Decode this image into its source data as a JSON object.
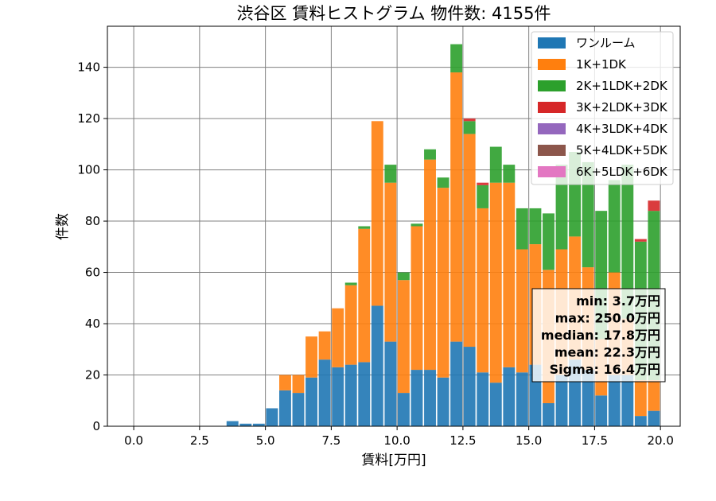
{
  "chart_data": {
    "type": "bar",
    "stacked": true,
    "title": "渋谷区 賃料ヒストグラム 物件数: 4155件",
    "xlabel": "賃料[万円]",
    "ylabel": "件数",
    "xlim": [
      -1.0,
      20.75
    ],
    "ylim": [
      0,
      156
    ],
    "xticks": [
      "0.0",
      "2.5",
      "5.0",
      "7.5",
      "10.0",
      "12.5",
      "15.0",
      "17.5",
      "20.0"
    ],
    "yticks": [
      "0",
      "20",
      "40",
      "60",
      "80",
      "100",
      "120",
      "140"
    ],
    "grid": true,
    "legend_position": "top-right",
    "bin_width": 0.5,
    "x": [
      3.0,
      3.5,
      4.0,
      4.5,
      5.0,
      5.5,
      6.0,
      6.5,
      7.0,
      7.5,
      8.0,
      8.5,
      9.0,
      9.5,
      10.0,
      10.5,
      11.0,
      11.5,
      12.0,
      12.5,
      13.0,
      13.5,
      14.0,
      14.5,
      15.0,
      15.5,
      16.0,
      16.5,
      17.0,
      17.5,
      18.0,
      18.5,
      19.0,
      19.5
    ],
    "series": [
      {
        "name": "ワンルーム",
        "color": "#1f77b4",
        "values": [
          0,
          2,
          1,
          1,
          7,
          14,
          13,
          19,
          26,
          23,
          24,
          25,
          47,
          33,
          13,
          22,
          22,
          19,
          33,
          31,
          21,
          17,
          23,
          21,
          24,
          9,
          20,
          26,
          22,
          12,
          20,
          20,
          4,
          6
        ]
      },
      {
        "name": "1K+1DK",
        "color": "#ff7f0e",
        "values": [
          0,
          0,
          0,
          0,
          0,
          6,
          7,
          16,
          11,
          23,
          31,
          52,
          72,
          62,
          44,
          56,
          82,
          74,
          105,
          83,
          64,
          78,
          72,
          48,
          47,
          52,
          49,
          48,
          40,
          22,
          40,
          22,
          14,
          12
        ]
      },
      {
        "name": "2K+1LDK+2DK",
        "color": "#2ca02c",
        "values": [
          0,
          0,
          0,
          0,
          0,
          0,
          0,
          0,
          0,
          0,
          1,
          1,
          0,
          7,
          3,
          1,
          4,
          4,
          11,
          5,
          9,
          14,
          7,
          16,
          14,
          22,
          33,
          33,
          41,
          50,
          36,
          60,
          54,
          66
        ]
      },
      {
        "name": "3K+2LDK+3DK",
        "color": "#d62728",
        "values": [
          0,
          0,
          0,
          0,
          0,
          0,
          0,
          0,
          0,
          0,
          0,
          0,
          0,
          0,
          0,
          0,
          0,
          0,
          0,
          1,
          1,
          0,
          0,
          0,
          0,
          0,
          0,
          0,
          0,
          0,
          0,
          0,
          1,
          4
        ]
      },
      {
        "name": "4K+3LDK+4DK",
        "color": "#9467bd",
        "values": [
          0,
          0,
          0,
          0,
          0,
          0,
          0,
          0,
          0,
          0,
          0,
          0,
          0,
          0,
          0,
          0,
          0,
          0,
          0,
          0,
          0,
          0,
          0,
          0,
          0,
          0,
          0,
          0,
          0,
          0,
          0,
          0,
          0,
          0
        ]
      },
      {
        "name": "5K+4LDK+5DK",
        "color": "#8c564b",
        "values": [
          0,
          0,
          0,
          0,
          0,
          0,
          0,
          0,
          0,
          0,
          0,
          0,
          0,
          0,
          0,
          0,
          0,
          0,
          0,
          0,
          0,
          0,
          0,
          0,
          0,
          0,
          0,
          0,
          0,
          0,
          0,
          0,
          0,
          0
        ]
      },
      {
        "name": "6K+5LDK+6DK",
        "color": "#e377c2",
        "values": [
          0,
          0,
          0,
          0,
          0,
          0,
          0,
          0,
          0,
          0,
          0,
          0,
          0,
          0,
          0,
          0,
          0,
          0,
          0,
          0,
          0,
          0,
          0,
          0,
          0,
          0,
          0,
          0,
          0,
          0,
          0,
          0,
          0,
          0
        ]
      }
    ],
    "stats": [
      "min: 3.7万円",
      "max: 250.0万円",
      "median: 17.8万円",
      "mean: 22.3万円",
      "Sigma: 16.4万円"
    ]
  }
}
